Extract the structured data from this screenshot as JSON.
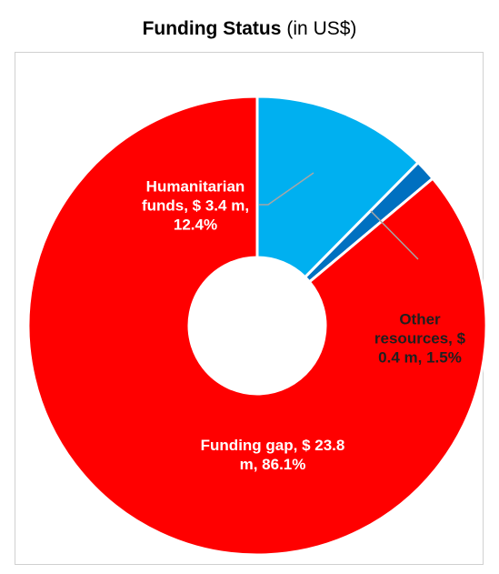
{
  "chart_data": {
    "type": "donut",
    "title": "Funding Status",
    "subtitle": "(in US$)",
    "values": [
      12.4,
      1.5,
      86.1
    ],
    "value_labels": [
      "Humanitarian funds, $ 3.4 m, 12.4%",
      "Other resources, $ 0.4 m, 1.5%",
      "Funding gap, $ 23.8 m, 86.1%"
    ],
    "colors": [
      "#00b0f0",
      "#0070c0",
      "#ff0000"
    ]
  }
}
